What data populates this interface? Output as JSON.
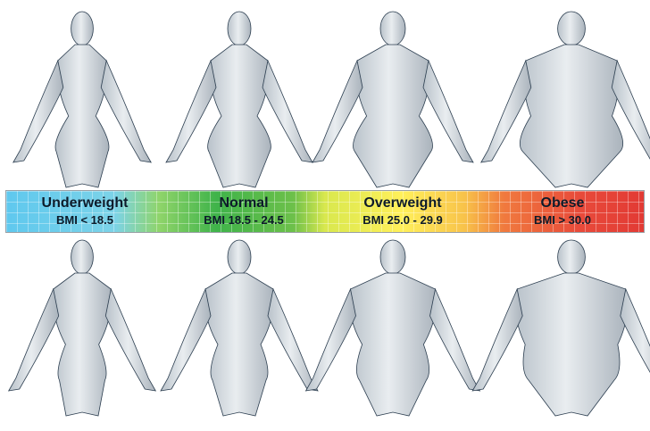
{
  "categories": [
    {
      "name": "Underweight",
      "range": "BMI < 18.5"
    },
    {
      "name": "Normal",
      "range": "BMI 18.5 - 24.5"
    },
    {
      "name": "Overweight",
      "range": "BMI 25.0 - 29.9"
    },
    {
      "name": "Obese",
      "range": "BMI > 30.0"
    }
  ],
  "colors": {
    "underweight": "#5fc8ee",
    "normal": "#3fb34a",
    "overweight": "#fff05a",
    "obese": "#e23a34",
    "figure_fill": "#d4d9de",
    "figure_stroke": "#2c3e50"
  },
  "figures": {
    "top_row": [
      "female-underweight",
      "female-normal",
      "female-overweight",
      "female-obese"
    ],
    "bottom_row": [
      "male-underweight",
      "male-normal",
      "male-overweight",
      "male-obese"
    ]
  }
}
